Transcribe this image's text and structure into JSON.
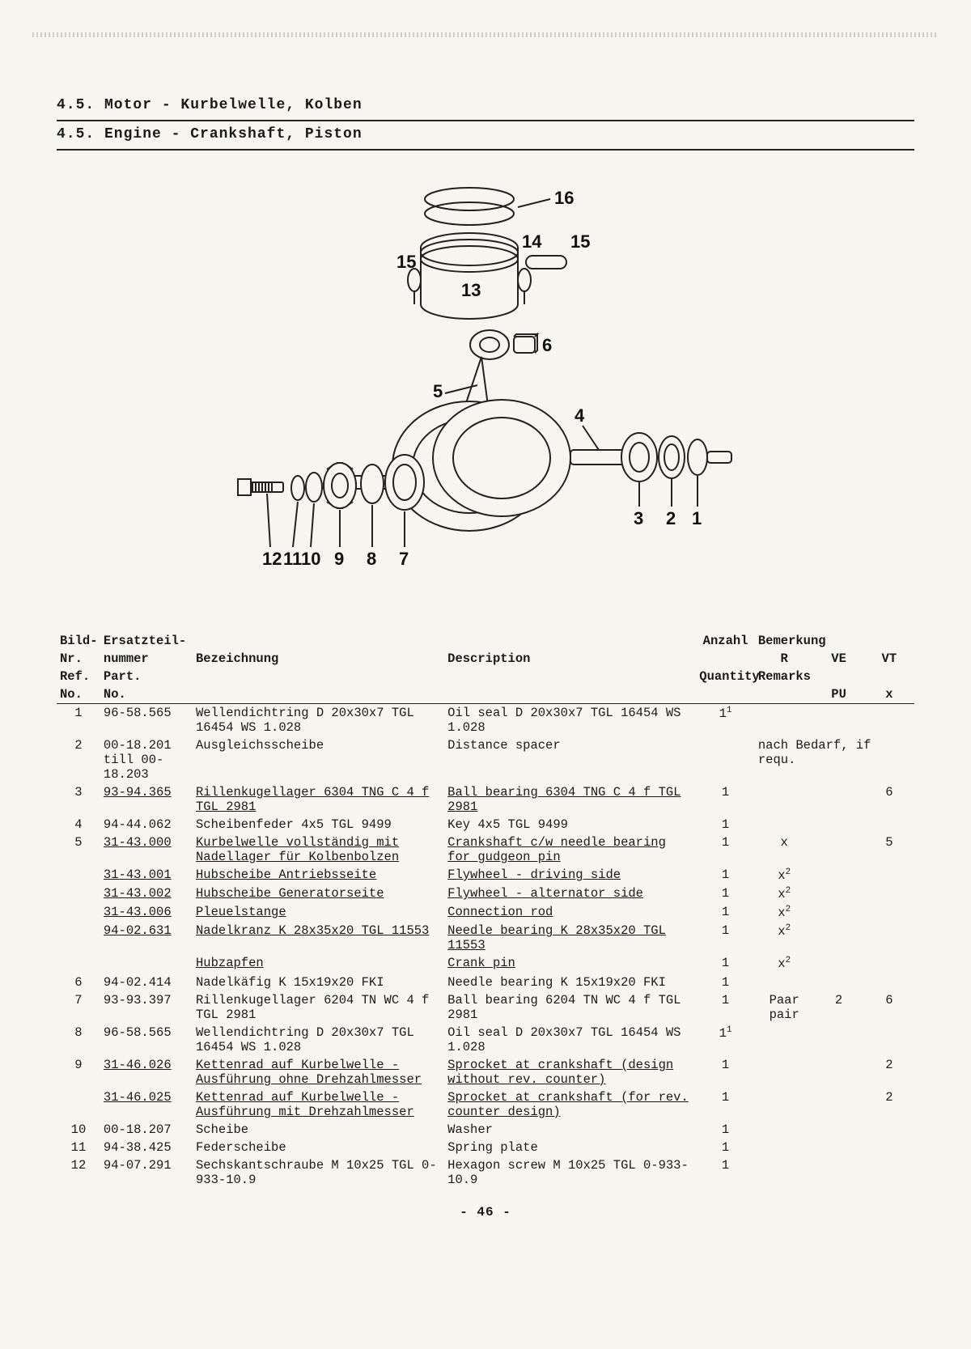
{
  "heading_de": "4.5. Motor - Kurbelwelle, Kolben",
  "heading_en": "4.5. Engine - Crankshaft, Piston",
  "page_number": "- 46 -",
  "diagram": {
    "callouts": [
      "1",
      "2",
      "3",
      "4",
      "5",
      "6",
      "7",
      "8",
      "9",
      "10",
      "11",
      "12",
      "13",
      "14",
      "15",
      "15",
      "16"
    ]
  },
  "columns": {
    "c1a": "Bild-",
    "c1b": "Nr.",
    "c1c": "Ref.",
    "c1d": "No.",
    "c2a": "Ersatzteil-",
    "c2b": "nummer",
    "c2c": "Part.",
    "c2d": "No.",
    "c3": "Bezeichnung",
    "c4": "Description",
    "c5a": "Anzahl",
    "c5b": "Quantity",
    "c6a": "Bemerkung",
    "c6b": "Remarks",
    "sub_r": "R",
    "sub_ve": "VE",
    "sub_vt": "VT",
    "sub_pu": "PU",
    "sub_x": "x"
  },
  "rows": [
    {
      "no": "1",
      "part": "96-58.565",
      "de": "Wellendichtring D 20x30x7 TGL 16454 WS 1.028",
      "en": "Oil seal D 20x30x7 TGL 16454 WS 1.028",
      "qty": "1¹",
      "r": "",
      "ve": "",
      "vt": ""
    },
    {
      "no": "2",
      "part": "00-18.201 till 00-18.203",
      "de": "Ausgleichsscheibe",
      "en": "Distance spacer",
      "qty": "",
      "remark_full": "nach Bedarf, if requ."
    },
    {
      "no": "3",
      "part": "93-94.365",
      "part_u": true,
      "de": "Rillenkugellager 6304 TNG C 4 f TGL 2981",
      "de_u": true,
      "en": "Ball bearing 6304 TNG C 4 f TGL 2981",
      "en_u": true,
      "qty": "1",
      "r": "",
      "ve": "",
      "vt": "6"
    },
    {
      "no": "4",
      "part": "94-44.062",
      "de": "Scheibenfeder 4x5 TGL 9499",
      "en": "Key 4x5 TGL 9499",
      "qty": "1"
    },
    {
      "no": "5",
      "part": "31-43.000",
      "part_u": true,
      "de": "Kurbelwelle vollständig mit Nadellager für Kolbenbolzen",
      "de_u": true,
      "en": "Crankshaft c/w needle bearing for gudgeon pin",
      "en_u": true,
      "qty": "1",
      "r": "x",
      "ve": "",
      "vt": "5"
    },
    {
      "no": "",
      "part": "31-43.001",
      "part_u": true,
      "de": "Hubscheibe Antriebsseite",
      "de_u": true,
      "en": "Flywheel - driving side",
      "en_u": true,
      "qty": "1",
      "r": "x²"
    },
    {
      "no": "",
      "part": "31-43.002",
      "part_u": true,
      "de": "Hubscheibe Generatorseite",
      "de_u": true,
      "en": "Flywheel - alternator side",
      "en_u": true,
      "qty": "1",
      "r": "x²"
    },
    {
      "no": "",
      "part": "31-43.006",
      "part_u": true,
      "de": "Pleuelstange",
      "de_u": true,
      "en": "Connection rod",
      "en_u": true,
      "qty": "1",
      "r": "x²"
    },
    {
      "no": "",
      "part": "94-02.631",
      "part_u": true,
      "de": "Nadelkranz K 28x35x20 TGL 11553",
      "de_u": true,
      "en": "Needle bearing K 28x35x20 TGL 11553",
      "en_u": true,
      "qty": "1",
      "r": "x²"
    },
    {
      "no": "",
      "part": "",
      "de": "Hubzapfen",
      "de_u": true,
      "en": "Crank pin",
      "en_u": true,
      "qty": "1",
      "r": "x²"
    },
    {
      "no": "6",
      "part": "94-02.414",
      "de": "Nadelkäfig K 15x19x20 FKI",
      "en": "Needle bearing K 15x19x20 FKI",
      "qty": "1"
    },
    {
      "no": "7",
      "part": "93-93.397",
      "de": "Rillenkugellager 6204 TN WC 4 f TGL 2981",
      "en": "Ball bearing 6204 TN WC 4 f TGL 2981",
      "qty": "1",
      "r": "Paar pair",
      "ve": "2",
      "vt": "6"
    },
    {
      "no": "8",
      "part": "96-58.565",
      "de": "Wellendichtring D 20x30x7 TGL 16454 WS 1.028",
      "en": "Oil seal D 20x30x7 TGL 16454 WS 1.028",
      "qty": "1¹"
    },
    {
      "no": "9",
      "part": "31-46.026",
      "part_u": true,
      "de": "Kettenrad auf Kurbelwelle - Ausführung ohne Drehzahlmesser",
      "de_u": true,
      "en": "Sprocket at crankshaft (design without rev. counter)",
      "en_u": true,
      "qty": "1",
      "vt": "2"
    },
    {
      "no": "",
      "part": "31-46.025",
      "part_u": true,
      "de": "Kettenrad auf Kurbelwelle - Ausführung mit Drehzahlmesser",
      "de_u": true,
      "en": "Sprocket at crankshaft (for rev. counter design)",
      "en_u": true,
      "qty": "1",
      "vt": "2"
    },
    {
      "no": "10",
      "part": "00-18.207",
      "de": "Scheibe",
      "en": "Washer",
      "qty": "1"
    },
    {
      "no": "11",
      "part": "94-38.425",
      "de": "Federscheibe",
      "en": "Spring plate",
      "qty": "1"
    },
    {
      "no": "12",
      "part": "94-07.291",
      "de": "Sechskantschraube M 10x25 TGL 0-933-10.9",
      "en": "Hexagon screw M 10x25 TGL 0-933-10.9",
      "qty": "1"
    }
  ]
}
